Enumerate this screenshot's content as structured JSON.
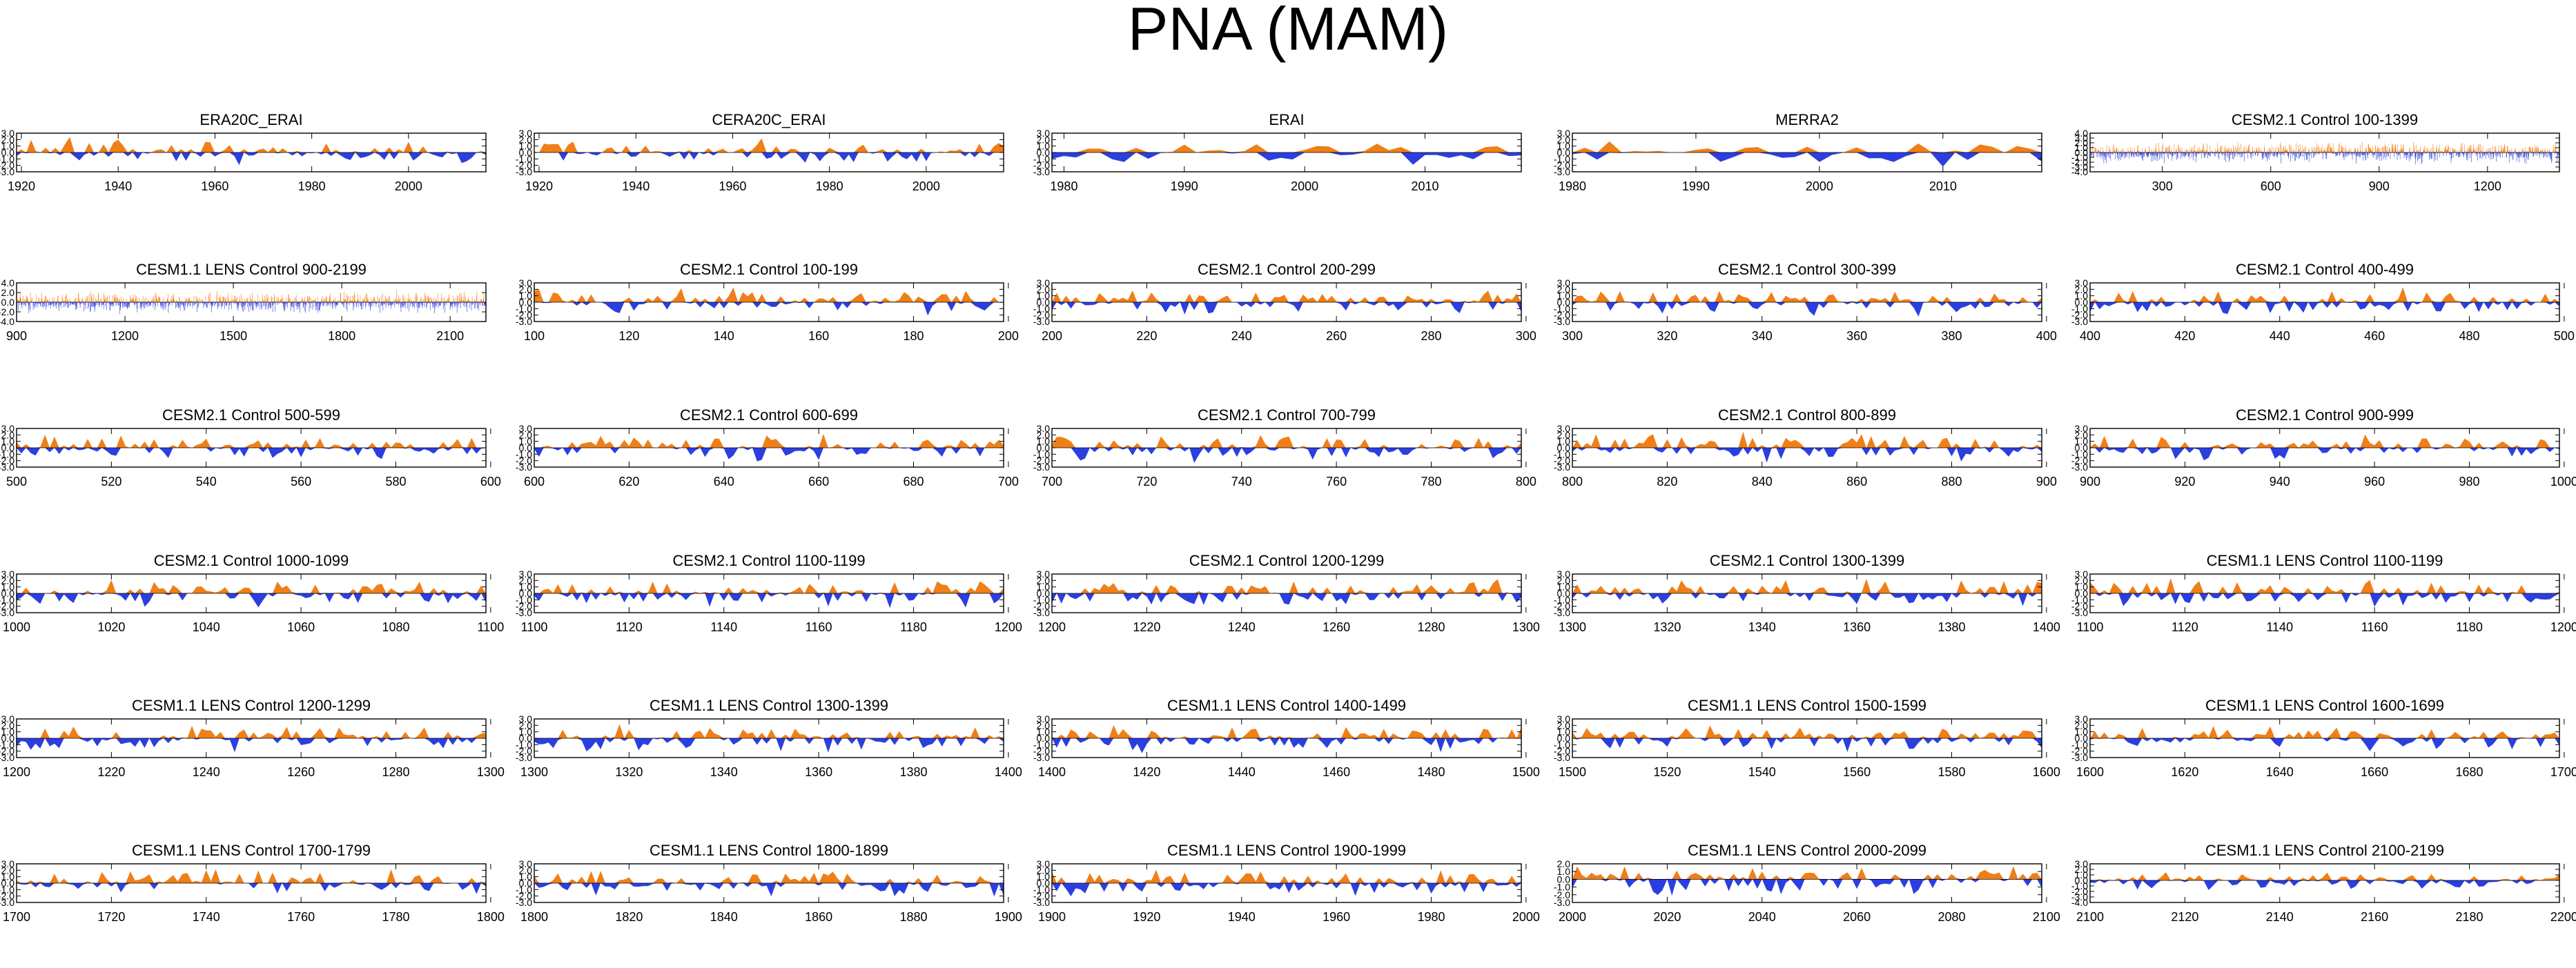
{
  "title": "PNA (MAM)",
  "colors": {
    "positive": "#f07f17",
    "negative": "#2b3fe0",
    "axis": "#000000"
  },
  "chart_data": [
    {
      "type": "area",
      "title": "ERA20C_ERAI",
      "xlim": [
        1919,
        2016
      ],
      "ticks": [
        "1920",
        "1940",
        "1960",
        "1980",
        "2000"
      ],
      "ylim": [
        -3,
        3
      ],
      "yticks": [
        "3.0",
        "2.0",
        "1.0",
        "0.0",
        "-1.0",
        "-2.0",
        "-3.0"
      ],
      "seed": 11,
      "npts": 98,
      "dense": false
    },
    {
      "type": "area",
      "title": "CERA20C_ERAI",
      "xlim": [
        1919,
        2016
      ],
      "ticks": [
        "1920",
        "1940",
        "1960",
        "1980",
        "2000"
      ],
      "ylim": [
        -3,
        3
      ],
      "yticks": [
        "3.0",
        "2.0",
        "1.0",
        "0.0",
        "-1.0",
        "-2.0",
        "-3.0"
      ],
      "seed": 12,
      "npts": 98,
      "dense": false
    },
    {
      "type": "area",
      "title": "ERAI",
      "xlim": [
        1979,
        2018
      ],
      "ticks": [
        "1980",
        "1990",
        "2000",
        "2010"
      ],
      "ylim": [
        -3,
        3
      ],
      "yticks": [
        "3.0",
        "2.0",
        "1.0",
        "0.0",
        "-1.0",
        "-2.0",
        "-3.0"
      ],
      "seed": 13,
      "npts": 40,
      "dense": false
    },
    {
      "type": "area",
      "title": "MERRA2",
      "xlim": [
        1980,
        2018
      ],
      "ticks": [
        "1980",
        "1990",
        "2000",
        "2010"
      ],
      "ylim": [
        -3,
        3
      ],
      "yticks": [
        "3.0",
        "2.0",
        "1.0",
        "0.0",
        "-1.0",
        "-2.0",
        "-3.0"
      ],
      "seed": 14,
      "npts": 39,
      "dense": false
    },
    {
      "type": "area",
      "title": "CESM2.1 Control 100-1399",
      "xlim": [
        100,
        1399
      ],
      "ticks": [
        "300",
        "600",
        "900",
        "1200"
      ],
      "ylim": [
        -4,
        4
      ],
      "yticks": [
        "4.0",
        "3.0",
        "2.0",
        "1.0",
        "0.0",
        "-1.0",
        "-2.0",
        "-3.0",
        "-4.0"
      ],
      "seed": 15,
      "npts": 1300,
      "dense": true
    },
    {
      "type": "area",
      "title": "CESM1.1 LENS Control 900-2199",
      "xlim": [
        900,
        2199
      ],
      "ticks": [
        "900",
        "1200",
        "1500",
        "1800",
        "2100"
      ],
      "ylim": [
        -4,
        4
      ],
      "yticks": [
        "4.0",
        "2.0",
        "0.0",
        "-2.0",
        "-4.0"
      ],
      "seed": 21,
      "npts": 1300,
      "dense": true
    },
    {
      "type": "area",
      "title": "CESM2.1 Control 100-199",
      "xlim": [
        100,
        199
      ],
      "ticks": [
        "100",
        "120",
        "140",
        "160",
        "180",
        "200"
      ],
      "ylim": [
        -3,
        3
      ],
      "yticks": [
        "3.0",
        "2.0",
        "1.0",
        "0.0",
        "-1.0",
        "-2.0",
        "-3.0"
      ],
      "seed": 22,
      "npts": 100,
      "dense": false
    },
    {
      "type": "area",
      "title": "CESM2.1 Control 200-299",
      "xlim": [
        200,
        299
      ],
      "ticks": [
        "200",
        "220",
        "240",
        "260",
        "280",
        "300"
      ],
      "ylim": [
        -3,
        3
      ],
      "yticks": [
        "3.0",
        "2.0",
        "1.0",
        "0.0",
        "-1.0",
        "-2.0",
        "-3.0"
      ],
      "seed": 23,
      "npts": 100,
      "dense": false
    },
    {
      "type": "area",
      "title": "CESM2.1 Control 300-399",
      "xlim": [
        300,
        399
      ],
      "ticks": [
        "300",
        "320",
        "340",
        "360",
        "380",
        "400"
      ],
      "ylim": [
        -3,
        3
      ],
      "yticks": [
        "3.0",
        "2.0",
        "1.0",
        "0.0",
        "-1.0",
        "-2.0",
        "-3.0"
      ],
      "seed": 24,
      "npts": 100,
      "dense": false
    },
    {
      "type": "area",
      "title": "CESM2.1 Control 400-499",
      "xlim": [
        400,
        499
      ],
      "ticks": [
        "400",
        "420",
        "440",
        "460",
        "480",
        "500"
      ],
      "ylim": [
        -3,
        3
      ],
      "yticks": [
        "3.0",
        "2.0",
        "1.0",
        "0.0",
        "-1.0",
        "-2.0",
        "-3.0"
      ],
      "seed": 25,
      "npts": 100,
      "dense": false
    },
    {
      "type": "area",
      "title": "CESM2.1 Control 500-599",
      "xlim": [
        500,
        599
      ],
      "ticks": [
        "500",
        "520",
        "540",
        "560",
        "580",
        "600"
      ],
      "ylim": [
        -3,
        3
      ],
      "yticks": [
        "3.0",
        "2.0",
        "1.0",
        "0.0",
        "-1.0",
        "-2.0",
        "-3.0"
      ],
      "seed": 31,
      "npts": 100,
      "dense": false
    },
    {
      "type": "area",
      "title": "CESM2.1 Control 600-699",
      "xlim": [
        600,
        699
      ],
      "ticks": [
        "600",
        "620",
        "640",
        "660",
        "680",
        "700"
      ],
      "ylim": [
        -3,
        3
      ],
      "yticks": [
        "3.0",
        "2.0",
        "1.0",
        "0.0",
        "-1.0",
        "-2.0",
        "-3.0"
      ],
      "seed": 32,
      "npts": 100,
      "dense": false
    },
    {
      "type": "area",
      "title": "CESM2.1 Control 700-799",
      "xlim": [
        700,
        799
      ],
      "ticks": [
        "700",
        "720",
        "740",
        "760",
        "780",
        "800"
      ],
      "ylim": [
        -3,
        3
      ],
      "yticks": [
        "3.0",
        "2.0",
        "1.0",
        "0.0",
        "-1.0",
        "-2.0",
        "-3.0"
      ],
      "seed": 33,
      "npts": 100,
      "dense": false
    },
    {
      "type": "area",
      "title": "CESM2.1 Control 800-899",
      "xlim": [
        800,
        899
      ],
      "ticks": [
        "800",
        "820",
        "840",
        "860",
        "880",
        "900"
      ],
      "ylim": [
        -3,
        3
      ],
      "yticks": [
        "3.0",
        "2.0",
        "1.0",
        "0.0",
        "-1.0",
        "-2.0",
        "-3.0"
      ],
      "seed": 34,
      "npts": 100,
      "dense": false
    },
    {
      "type": "area",
      "title": "CESM2.1 Control 900-999",
      "xlim": [
        900,
        999
      ],
      "ticks": [
        "900",
        "920",
        "940",
        "960",
        "980",
        "1000"
      ],
      "ylim": [
        -3,
        3
      ],
      "yticks": [
        "3.0",
        "2.0",
        "1.0",
        "0.0",
        "-1.0",
        "-2.0",
        "-3.0"
      ],
      "seed": 35,
      "npts": 100,
      "dense": false
    },
    {
      "type": "area",
      "title": "CESM2.1 Control 1000-1099",
      "xlim": [
        1000,
        1099
      ],
      "ticks": [
        "1000",
        "1020",
        "1040",
        "1060",
        "1080",
        "1100"
      ],
      "ylim": [
        -3,
        3
      ],
      "yticks": [
        "3.0",
        "2.0",
        "1.0",
        "0.0",
        "-1.0",
        "-2.0",
        "-3.0"
      ],
      "seed": 41,
      "npts": 100,
      "dense": false
    },
    {
      "type": "area",
      "title": "CESM2.1 Control 1100-1199",
      "xlim": [
        1100,
        1199
      ],
      "ticks": [
        "1100",
        "1120",
        "1140",
        "1160",
        "1180",
        "1200"
      ],
      "ylim": [
        -3,
        3
      ],
      "yticks": [
        "3.0",
        "2.0",
        "1.0",
        "0.0",
        "-1.0",
        "-2.0",
        "-3.0"
      ],
      "seed": 42,
      "npts": 100,
      "dense": false
    },
    {
      "type": "area",
      "title": "CESM2.1 Control 1200-1299",
      "xlim": [
        1200,
        1299
      ],
      "ticks": [
        "1200",
        "1220",
        "1240",
        "1260",
        "1280",
        "1300"
      ],
      "ylim": [
        -3,
        3
      ],
      "yticks": [
        "3.0",
        "2.0",
        "1.0",
        "0.0",
        "-1.0",
        "-2.0",
        "-3.0"
      ],
      "seed": 43,
      "npts": 100,
      "dense": false
    },
    {
      "type": "area",
      "title": "CESM2.1 Control 1300-1399",
      "xlim": [
        1300,
        1399
      ],
      "ticks": [
        "1300",
        "1320",
        "1340",
        "1360",
        "1380",
        "1400"
      ],
      "ylim": [
        -3,
        3
      ],
      "yticks": [
        "3.0",
        "2.0",
        "1.0",
        "0.0",
        "-1.0",
        "-2.0",
        "-3.0"
      ],
      "seed": 44,
      "npts": 100,
      "dense": false
    },
    {
      "type": "area",
      "title": "CESM1.1 LENS Control 1100-1199",
      "xlim": [
        1100,
        1199
      ],
      "ticks": [
        "1100",
        "1120",
        "1140",
        "1160",
        "1180",
        "1200"
      ],
      "ylim": [
        -3,
        3
      ],
      "yticks": [
        "3.0",
        "2.0",
        "1.0",
        "0.0",
        "-1.0",
        "-2.0",
        "-3.0"
      ],
      "seed": 45,
      "npts": 100,
      "dense": false
    },
    {
      "type": "area",
      "title": "CESM1.1 LENS Control 1200-1299",
      "xlim": [
        1200,
        1299
      ],
      "ticks": [
        "1200",
        "1220",
        "1240",
        "1260",
        "1280",
        "1300"
      ],
      "ylim": [
        -3,
        3
      ],
      "yticks": [
        "3.0",
        "2.0",
        "1.0",
        "0.0",
        "-1.0",
        "-2.0",
        "-3.0"
      ],
      "seed": 51,
      "npts": 100,
      "dense": false
    },
    {
      "type": "area",
      "title": "CESM1.1 LENS Control 1300-1399",
      "xlim": [
        1300,
        1399
      ],
      "ticks": [
        "1300",
        "1320",
        "1340",
        "1360",
        "1380",
        "1400"
      ],
      "ylim": [
        -3,
        3
      ],
      "yticks": [
        "3.0",
        "2.0",
        "1.0",
        "0.0",
        "-1.0",
        "-2.0",
        "-3.0"
      ],
      "seed": 52,
      "npts": 100,
      "dense": false
    },
    {
      "type": "area",
      "title": "CESM1.1 LENS Control 1400-1499",
      "xlim": [
        1400,
        1499
      ],
      "ticks": [
        "1400",
        "1420",
        "1440",
        "1460",
        "1480",
        "1500"
      ],
      "ylim": [
        -3,
        3
      ],
      "yticks": [
        "3.0",
        "2.0",
        "1.0",
        "0.0",
        "-1.0",
        "-2.0",
        "-3.0"
      ],
      "seed": 53,
      "npts": 100,
      "dense": false
    },
    {
      "type": "area",
      "title": "CESM1.1 LENS Control 1500-1599",
      "xlim": [
        1500,
        1599
      ],
      "ticks": [
        "1500",
        "1520",
        "1540",
        "1560",
        "1580",
        "1600"
      ],
      "ylim": [
        -3,
        3
      ],
      "yticks": [
        "3.0",
        "2.0",
        "1.0",
        "0.0",
        "-1.0",
        "-2.0",
        "-3.0"
      ],
      "seed": 54,
      "npts": 100,
      "dense": false
    },
    {
      "type": "area",
      "title": "CESM1.1 LENS Control 1600-1699",
      "xlim": [
        1600,
        1699
      ],
      "ticks": [
        "1600",
        "1620",
        "1640",
        "1660",
        "1680",
        "1700"
      ],
      "ylim": [
        -3,
        3
      ],
      "yticks": [
        "3.0",
        "2.0",
        "1.0",
        "0.0",
        "-1.0",
        "-2.0",
        "-3.0"
      ],
      "seed": 55,
      "npts": 100,
      "dense": false
    },
    {
      "type": "area",
      "title": "CESM1.1 LENS Control 1700-1799",
      "xlim": [
        1700,
        1799
      ],
      "ticks": [
        "1700",
        "1720",
        "1740",
        "1760",
        "1780",
        "1800"
      ],
      "ylim": [
        -3,
        3
      ],
      "yticks": [
        "3.0",
        "2.0",
        "1.0",
        "0.0",
        "-1.0",
        "-2.0",
        "-3.0"
      ],
      "seed": 61,
      "npts": 100,
      "dense": false
    },
    {
      "type": "area",
      "title": "CESM1.1 LENS Control 1800-1899",
      "xlim": [
        1800,
        1899
      ],
      "ticks": [
        "1800",
        "1820",
        "1840",
        "1860",
        "1880",
        "1900"
      ],
      "ylim": [
        -3,
        3
      ],
      "yticks": [
        "3.0",
        "2.0",
        "1.0",
        "0.0",
        "-1.0",
        "-2.0",
        "-3.0"
      ],
      "seed": 62,
      "npts": 100,
      "dense": false
    },
    {
      "type": "area",
      "title": "CESM1.1 LENS Control 1900-1999",
      "xlim": [
        1900,
        1999
      ],
      "ticks": [
        "1900",
        "1920",
        "1940",
        "1960",
        "1980",
        "2000"
      ],
      "ylim": [
        -3,
        3
      ],
      "yticks": [
        "3.0",
        "2.0",
        "1.0",
        "0.0",
        "-1.0",
        "-2.0",
        "-3.0"
      ],
      "seed": 63,
      "npts": 100,
      "dense": false
    },
    {
      "type": "area",
      "title": "CESM1.1 LENS Control 2000-2099",
      "xlim": [
        2000,
        2099
      ],
      "ticks": [
        "2000",
        "2020",
        "2040",
        "2060",
        "2080",
        "2100"
      ],
      "ylim": [
        -3,
        2
      ],
      "yticks": [
        "2.0",
        "1.0",
        "0.0",
        "-1.0",
        "-2.0",
        "-3.0"
      ],
      "seed": 64,
      "npts": 100,
      "dense": false
    },
    {
      "type": "area",
      "title": "CESM1.1 LENS Control 2100-2199",
      "xlim": [
        2100,
        2199
      ],
      "ticks": [
        "2100",
        "2120",
        "2140",
        "2160",
        "2180",
        "2200"
      ],
      "ylim": [
        -4,
        3
      ],
      "yticks": [
        "3.0",
        "2.0",
        "1.0",
        "0.0",
        "-1.0",
        "-2.0",
        "-3.0",
        "-4.0"
      ],
      "seed": 65,
      "npts": 100,
      "dense": false
    }
  ]
}
